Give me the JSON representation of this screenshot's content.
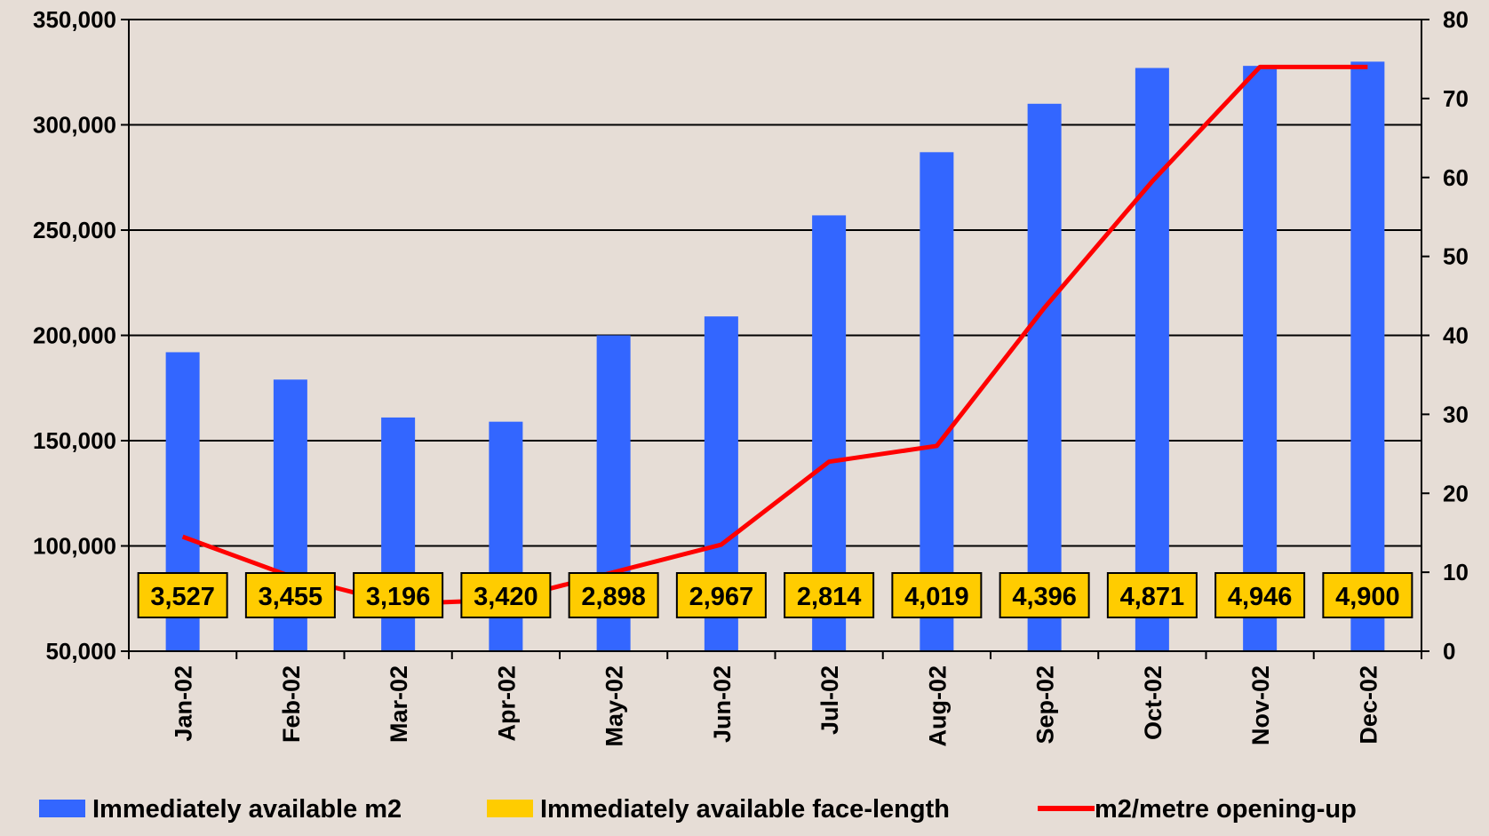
{
  "chart_data": {
    "type": "bar",
    "title": "",
    "xlabel": "",
    "ylabel": "",
    "categories": [
      "Jan-02",
      "Feb-02",
      "Mar-02",
      "Apr-02",
      "May-02",
      "Jun-02",
      "Jul-02",
      "Aug-02",
      "Sep-02",
      "Oct-02",
      "Nov-02",
      "Dec-02"
    ],
    "ylim": [
      50000,
      350000
    ],
    "y_ticks": [
      "50,000",
      "100,000",
      "150,000",
      "200,000",
      "250,000",
      "300,000",
      "350,000"
    ],
    "y2lim": [
      0,
      80
    ],
    "y2_ticks": [
      "0",
      "10",
      "20",
      "30",
      "40",
      "50",
      "60",
      "70",
      "80"
    ],
    "grid": true,
    "legend_position": "bottom",
    "series": [
      {
        "name": "Immediately available m2",
        "kind": "bar",
        "axis": "left",
        "color": "#3366ff",
        "values": [
          192000,
          179000,
          161000,
          159000,
          200000,
          209000,
          257000,
          287000,
          310000,
          327000,
          328000,
          330000
        ]
      },
      {
        "name": "Immediately available face-length",
        "kind": "label",
        "color": "#ffcc00",
        "values": [
          3527,
          3455,
          3196,
          3420,
          2898,
          2967,
          2814,
          4019,
          4396,
          4871,
          4946,
          4900
        ],
        "labels": [
          "3,527",
          "3,455",
          "3,196",
          "3,420",
          "2,898",
          "2,967",
          "2,814",
          "4,019",
          "4,396",
          "4,871",
          "4,946",
          "4,900"
        ]
      },
      {
        "name": "m2/metre opening-up",
        "kind": "line",
        "axis": "right",
        "color": "#ff0000",
        "values": [
          14.5,
          9.5,
          6.0,
          6.5,
          10.0,
          13.5,
          24.0,
          26.0,
          43.5,
          59.5,
          74.0,
          74.0
        ]
      }
    ]
  }
}
